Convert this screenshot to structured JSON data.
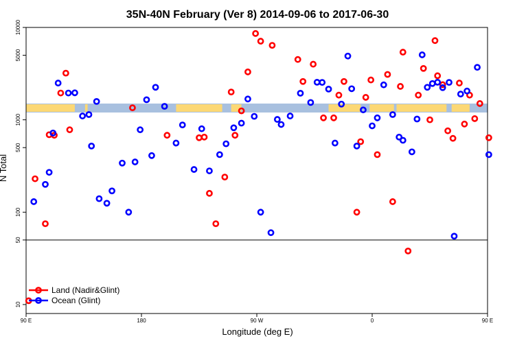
{
  "chart_data": {
    "type": "scatter",
    "title": "35N-40N February (Ver 8)   2014-09-06 to 2017-06-30",
    "xlabel": "Longitude (deg E)",
    "ylabel": "N Total",
    "y_scale": "log",
    "xlim": [
      90,
      450
    ],
    "ylim": [
      8,
      10000
    ],
    "x_ticks": [
      {
        "value": 90,
        "label": "90 E"
      },
      {
        "value": 180,
        "label": "180"
      },
      {
        "value": 270,
        "label": "90 W"
      },
      {
        "value": 360,
        "label": "0"
      },
      {
        "value": 450,
        "label": "90 E"
      }
    ],
    "y_ticks": [
      {
        "value": 10,
        "label": "10"
      },
      {
        "value": 50,
        "label": "50"
      },
      {
        "value": 100,
        "label": "100"
      },
      {
        "value": 500,
        "label": "500"
      },
      {
        "value": 1000,
        "label": "1000"
      },
      {
        "value": 5000,
        "label": "5000"
      },
      {
        "value": 10000,
        "label": "10000"
      }
    ],
    "reference_line_y": 50,
    "map_strip": {
      "y_range": [
        1200,
        1500
      ],
      "land_color": "#fcd875",
      "ocean_color": "#a8c0df"
    },
    "legend_position": "bottom-left",
    "series": [
      {
        "name": "Land (Nadir&Glint)",
        "color": "#ff0000",
        "x": [
          92,
          97,
          105,
          108,
          112,
          117,
          121,
          124,
          173,
          200,
          225,
          229,
          233,
          238,
          245,
          250,
          253,
          258,
          263,
          269,
          273,
          282,
          302,
          306,
          314,
          322,
          330,
          334,
          338,
          348,
          351,
          355,
          359,
          364,
          372,
          376,
          382,
          384,
          388,
          396,
          400,
          405,
          409,
          411,
          415,
          419,
          423,
          428,
          432,
          436,
          440,
          444,
          451
        ],
        "y": [
          11,
          230,
          75,
          690,
          680,
          1950,
          3200,
          780,
          1350,
          680,
          640,
          650,
          160,
          75,
          240,
          2000,
          680,
          1250,
          3300,
          8600,
          7100,
          6400,
          4500,
          2600,
          4000,
          1050,
          1050,
          1850,
          2600,
          100,
          580,
          1750,
          2700,
          420,
          3100,
          130,
          2300,
          5400,
          38,
          1850,
          3600,
          1000,
          7200,
          3000,
          2400,
          760,
          630,
          2500,
          900,
          1850,
          1030,
          1500,
          640
        ]
      },
      {
        "name": "Ocean (Glint)",
        "color": "#0000ff",
        "x": [
          96,
          105,
          108,
          111,
          115,
          123,
          128,
          134,
          139,
          141,
          145,
          147,
          153,
          157,
          165,
          170,
          175,
          179,
          184,
          188,
          191,
          198,
          207,
          212,
          221,
          227,
          233,
          241,
          246,
          252,
          258,
          263,
          268,
          273,
          281,
          286,
          289,
          296,
          304,
          312,
          317,
          321,
          326,
          331,
          336,
          341,
          344,
          348,
          353,
          360,
          364,
          369,
          376,
          381,
          384,
          391,
          395,
          399,
          403,
          407,
          411,
          415,
          420,
          424,
          429,
          434,
          442,
          451
        ],
        "y": [
          130,
          200,
          270,
          720,
          2500,
          1950,
          1960,
          1100,
          1140,
          520,
          1580,
          140,
          125,
          170,
          340,
          100,
          350,
          780,
          1650,
          410,
          2250,
          1400,
          560,
          880,
          290,
          800,
          280,
          420,
          550,
          820,
          920,
          1680,
          1090,
          100,
          60,
          1010,
          890,
          1100,
          1940,
          1540,
          2550,
          2540,
          2150,
          560,
          1480,
          4900,
          2170,
          520,
          1280,
          860,
          1050,
          2390,
          1140,
          650,
          600,
          450,
          1020,
          5050,
          2250,
          2470,
          2550,
          2230,
          2540,
          55,
          1900,
          2050,
          3700,
          420
        ]
      }
    ]
  }
}
